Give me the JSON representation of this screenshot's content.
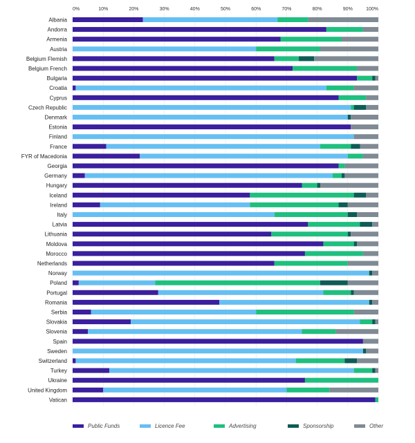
{
  "chart_data": {
    "type": "bar",
    "orientation": "horizontal",
    "stacked": true,
    "xlim": [
      0,
      100
    ],
    "x_ticks": [
      "0%",
      "10%",
      "20%",
      "30%",
      "40%",
      "50%",
      "60%",
      "70%",
      "80%",
      "90%",
      "100%"
    ],
    "grid": true,
    "legend_position": "bottom",
    "categories": [
      "Albania",
      "Andorra",
      "Armenia",
      "Austria",
      "Belgium Flemish",
      "Belgium French",
      "Bulgaria",
      "Croatia",
      "Cyprus",
      "Czech Republic",
      "Denmark",
      "Estonia",
      "Finland",
      "France",
      "FYR of Macedonia",
      "Georgia",
      "Germany",
      "Hungary",
      "Iceland",
      "Ireland",
      "Italy",
      "Latvia",
      "Lithuania",
      "Moldova",
      "Morocco",
      "Netherlands",
      "Norway",
      "Poland",
      "Portugal",
      "Romania",
      "Serbia",
      "Slovakia",
      "Slovenia",
      "Spain",
      "Sweden",
      "Switzerland",
      "Turkey",
      "Ukraine",
      "United Kingdom",
      "Vatican"
    ],
    "series": [
      {
        "name": "Public Funds",
        "color": "#3a1f9e",
        "values": [
          23,
          83,
          68,
          0,
          66,
          72,
          93,
          1,
          87,
          0,
          0,
          91,
          0,
          11,
          22,
          87,
          4,
          75,
          58,
          9,
          0,
          77,
          65,
          82,
          76,
          66,
          0,
          2,
          28,
          48,
          6,
          19,
          5,
          95,
          0,
          1,
          12,
          76,
          10,
          99
        ]
      },
      {
        "name": "Licence Fee",
        "color": "#66bff2",
        "values": [
          44,
          0,
          0,
          60,
          0,
          0,
          0,
          82,
          0,
          91,
          90,
          0,
          92,
          70,
          68,
          0,
          81,
          0,
          0,
          49,
          66,
          0,
          0,
          0,
          0,
          0,
          97,
          25,
          54,
          49,
          54,
          75,
          70,
          0,
          95,
          72,
          80,
          0,
          60,
          0
        ]
      },
      {
        "name": "Advertising",
        "color": "#1fbf7f",
        "values": [
          10,
          12,
          20,
          21,
          8,
          21,
          5,
          9,
          9,
          1,
          0,
          0,
          0,
          10,
          5,
          2,
          3,
          5,
          34,
          29,
          24,
          17,
          25,
          10,
          19,
          24,
          0,
          54,
          9,
          0,
          32,
          4,
          11,
          0,
          0,
          16,
          6,
          24,
          14,
          1
        ]
      },
      {
        "name": "Sponsorship",
        "color": "#0d5c55",
        "values": [
          0,
          0,
          0,
          0,
          5,
          0,
          1,
          0,
          0,
          4,
          1,
          0,
          0,
          3,
          0,
          0,
          1,
          1,
          4,
          3,
          3,
          4,
          1,
          1,
          0,
          0,
          1,
          9,
          1,
          1,
          0,
          1,
          0,
          0,
          1,
          4,
          1,
          0,
          0,
          0
        ]
      },
      {
        "name": "Other",
        "color": "#7f8a94",
        "values": [
          23,
          5,
          12,
          19,
          21,
          7,
          1,
          8,
          4,
          4,
          9,
          9,
          8,
          6,
          5,
          11,
          11,
          19,
          4,
          10,
          7,
          2,
          9,
          7,
          5,
          10,
          2,
          10,
          8,
          2,
          8,
          1,
          14,
          5,
          4,
          7,
          1,
          0,
          16,
          0
        ]
      }
    ]
  }
}
